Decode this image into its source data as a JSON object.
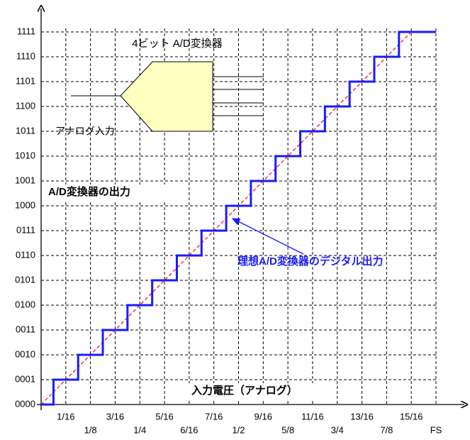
{
  "chart_data": {
    "type": "line",
    "ylabel": "A/D変換器の出力",
    "xlabel": "入力電圧（アナログ）",
    "annotations": {
      "diagram_title": "4ビット A/D変換器",
      "diagram_input": "アナログ入力",
      "ideal_output": "理想A/D変換器のデジタル出力"
    },
    "xlim": [
      0,
      1
    ],
    "ylim": [
      0,
      15
    ],
    "grid": true,
    "xticks": [
      {
        "value": 0.0625,
        "label": "1/16"
      },
      {
        "value": 0.125,
        "label": "1/8"
      },
      {
        "value": 0.1875,
        "label": "3/16"
      },
      {
        "value": 0.25,
        "label": "1/4"
      },
      {
        "value": 0.3125,
        "label": "5/16"
      },
      {
        "value": 0.375,
        "label": "6/16"
      },
      {
        "value": 0.4375,
        "label": "7/16"
      },
      {
        "value": 0.5,
        "label": "1/2"
      },
      {
        "value": 0.5625,
        "label": "9/16"
      },
      {
        "value": 0.625,
        "label": "5/8"
      },
      {
        "value": 0.6875,
        "label": "11/16"
      },
      {
        "value": 0.75,
        "label": "3/4"
      },
      {
        "value": 0.8125,
        "label": "13/16"
      },
      {
        "value": 0.875,
        "label": "7/8"
      },
      {
        "value": 0.9375,
        "label": "15/16"
      },
      {
        "value": 1,
        "label": "FS"
      }
    ],
    "yticks": [
      {
        "value": 0,
        "label": "0000"
      },
      {
        "value": 1,
        "label": "0001"
      },
      {
        "value": 2,
        "label": "0010"
      },
      {
        "value": 3,
        "label": "0011"
      },
      {
        "value": 4,
        "label": "0100"
      },
      {
        "value": 5,
        "label": "0101"
      },
      {
        "value": 6,
        "label": "0110"
      },
      {
        "value": 7,
        "label": "0111"
      },
      {
        "value": 8,
        "label": "1000"
      },
      {
        "value": 9,
        "label": "1001"
      },
      {
        "value": 10,
        "label": "1010"
      },
      {
        "value": 11,
        "label": "1011"
      },
      {
        "value": 12,
        "label": "1100"
      },
      {
        "value": 13,
        "label": "1101"
      },
      {
        "value": 14,
        "label": "1110"
      },
      {
        "value": 15,
        "label": "1111"
      }
    ],
    "series": [
      {
        "color": "#1a1aff",
        "dashed": false,
        "x": [
          0,
          0.03125,
          0.03125,
          0.09375,
          0.09375,
          0.15625,
          0.15625,
          0.21875,
          0.21875,
          0.28125,
          0.28125,
          0.34375,
          0.34375,
          0.40625,
          0.40625,
          0.46875,
          0.46875,
          0.53125,
          0.53125,
          0.59375,
          0.59375,
          0.65625,
          0.65625,
          0.71875,
          0.71875,
          0.78125,
          0.78125,
          0.84375,
          0.84375,
          0.90625,
          0.90625,
          1
        ],
        "values": [
          0,
          0,
          1,
          1,
          2,
          2,
          3,
          3,
          4,
          4,
          5,
          5,
          6,
          6,
          7,
          7,
          8,
          8,
          9,
          9,
          10,
          10,
          11,
          11,
          12,
          12,
          13,
          13,
          14,
          14,
          15,
          15
        ]
      },
      {
        "color": "#e02020",
        "dashed": true,
        "x": [
          0,
          0.9375
        ],
        "values": [
          0,
          15
        ]
      }
    ]
  }
}
